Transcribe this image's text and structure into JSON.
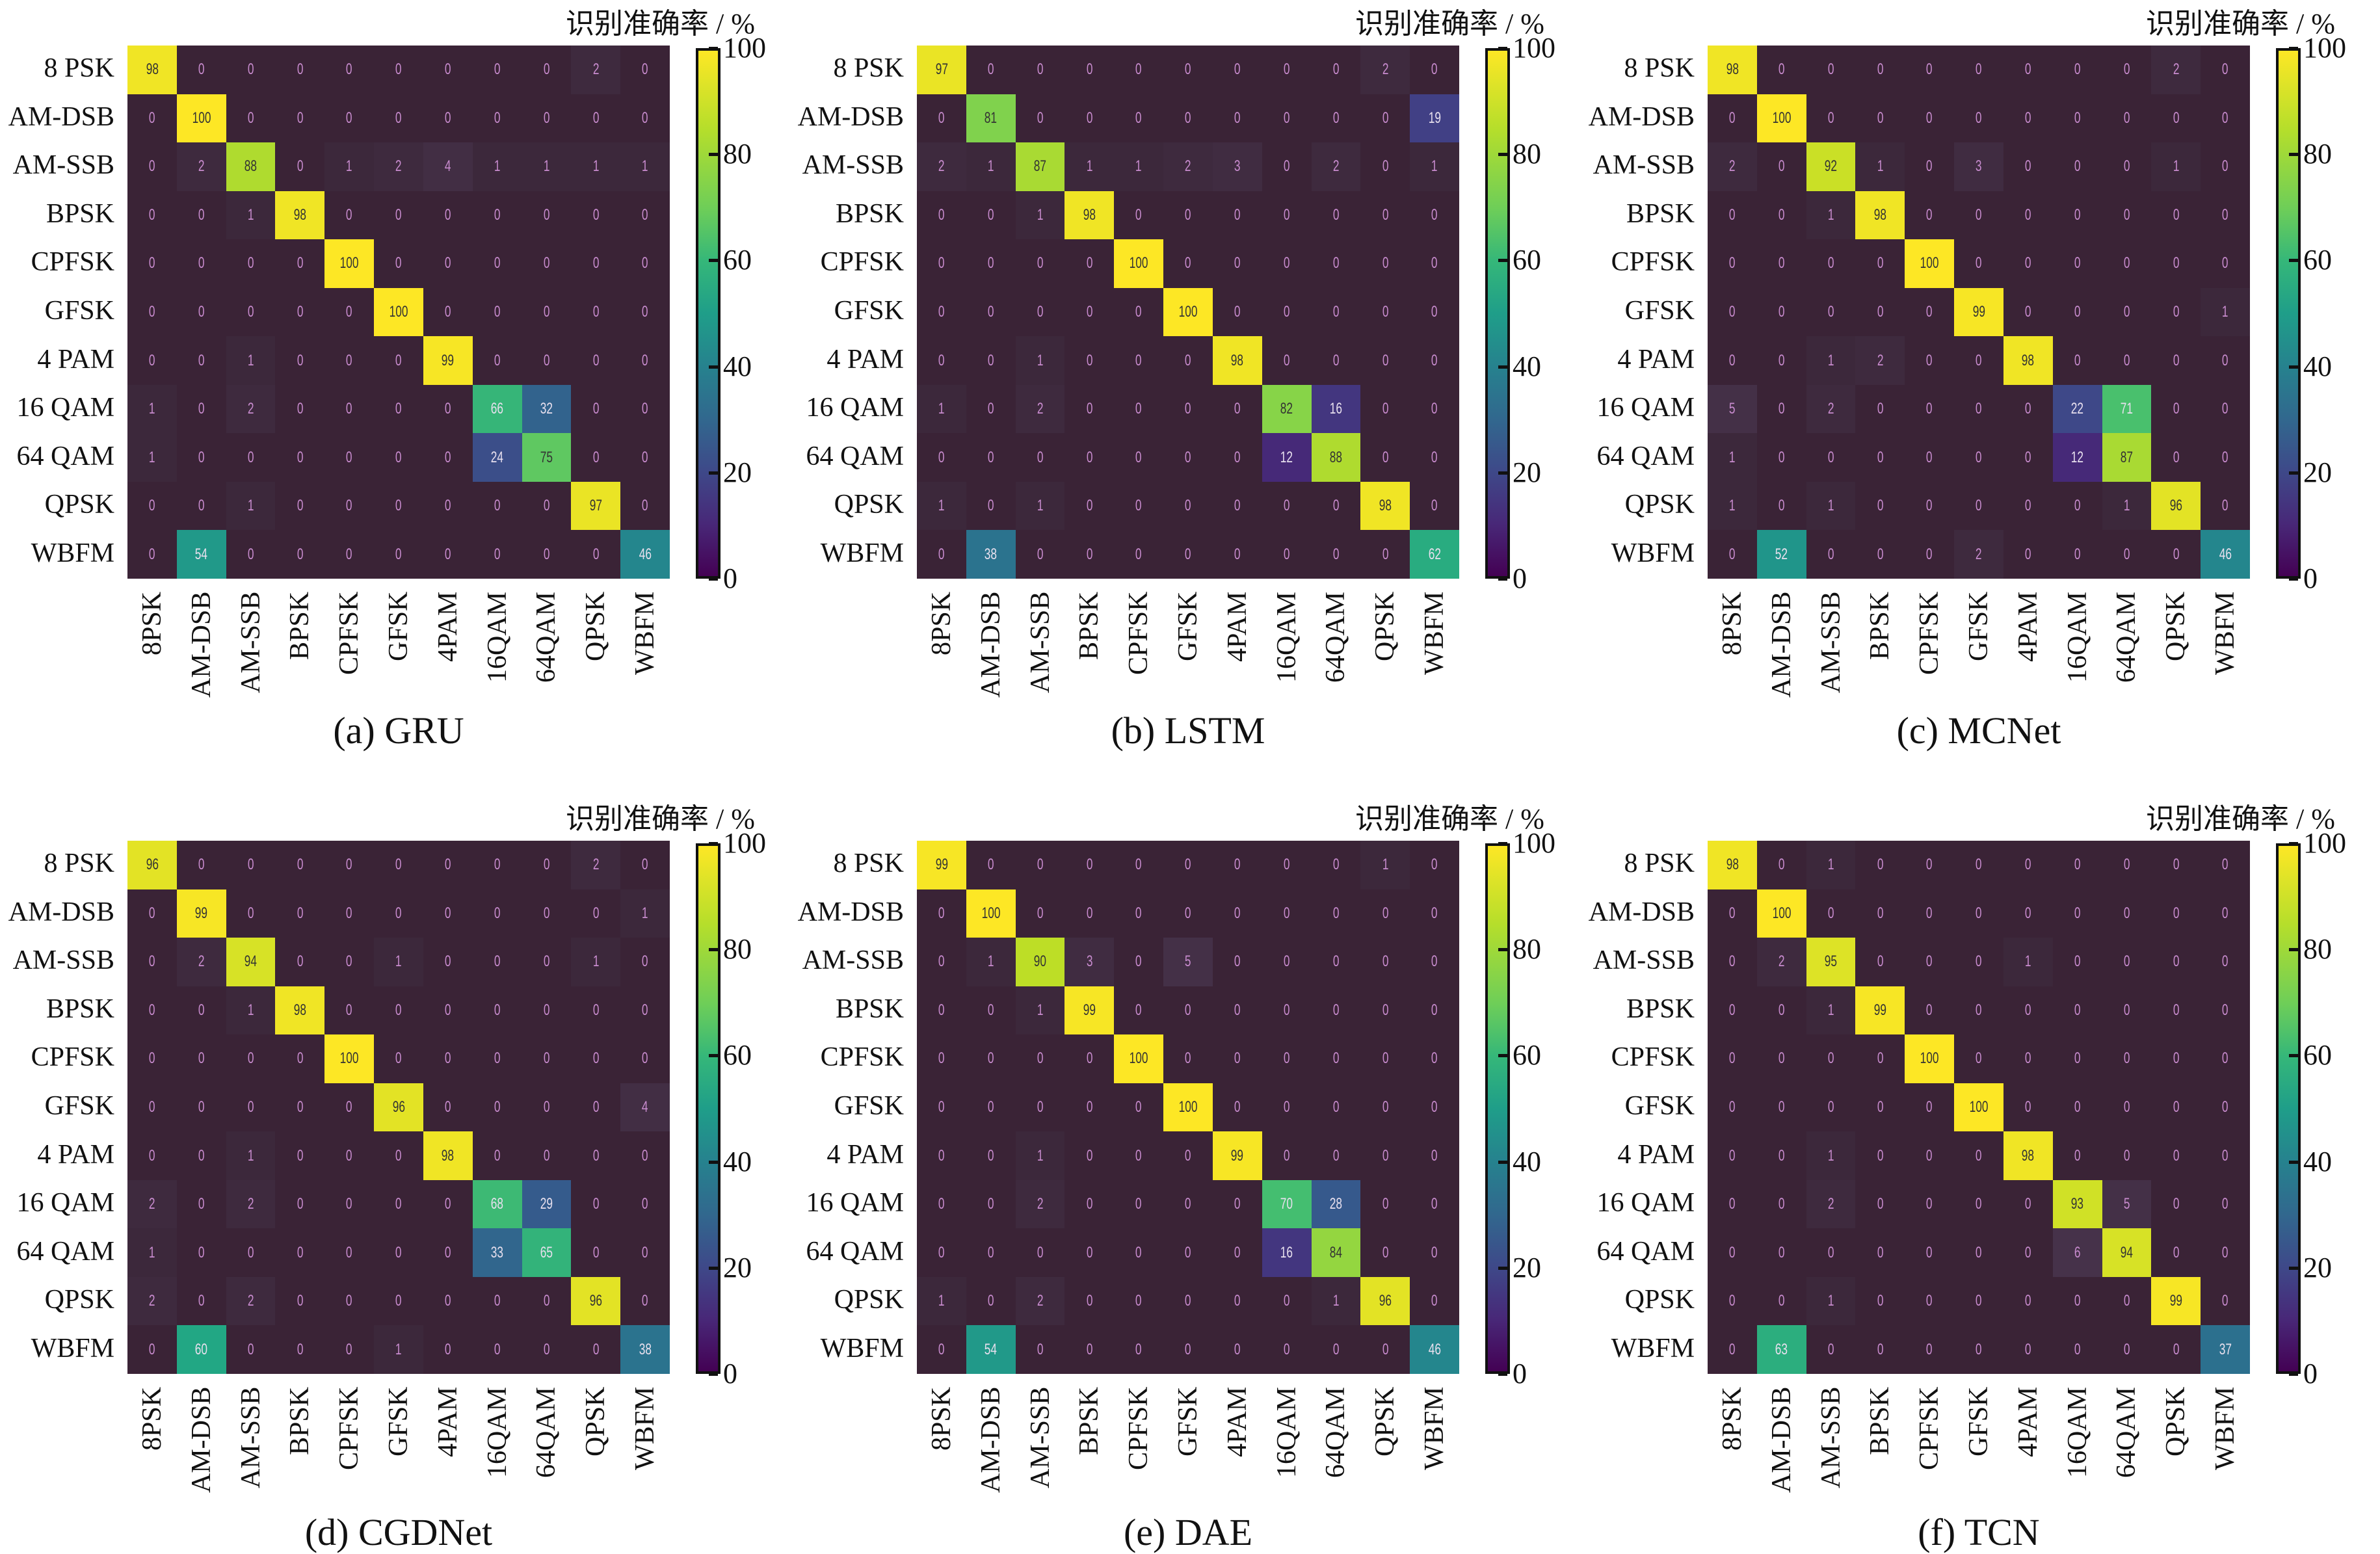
{
  "figure": {
    "colorbar_title": "识别准确率 / %",
    "colorbar_ticks": [
      "0",
      "20",
      "40",
      "60",
      "80",
      "100"
    ]
  },
  "chart_data": [
    {
      "type": "heatmap",
      "title": "(a) GRU",
      "row_labels": [
        "8 PSK",
        "AM-DSB",
        "AM-SSB",
        "BPSK",
        "CPFSK",
        "GFSK",
        "4 PAM",
        "16 QAM",
        "64 QAM",
        "QPSK",
        "WBFM"
      ],
      "col_labels": [
        "8PSK",
        "AM-DSB",
        "AM-SSB",
        "BPSK",
        "CPFSK",
        "GFSK",
        "4PAM",
        "16QAM",
        "64QAM",
        "QPSK",
        "WBFM"
      ],
      "colorbar": {
        "label": "识别准确率 / %",
        "range": [
          0,
          100
        ],
        "ticks": [
          0,
          20,
          40,
          60,
          80,
          100
        ],
        "colormap": "viridis"
      },
      "values": [
        [
          98,
          0,
          0,
          0,
          0,
          0,
          0,
          0,
          0,
          2,
          0
        ],
        [
          0,
          100,
          0,
          0,
          0,
          0,
          0,
          0,
          0,
          0,
          0
        ],
        [
          0,
          2,
          88,
          0,
          1,
          2,
          4,
          1,
          1,
          1,
          1
        ],
        [
          0,
          0,
          1,
          98,
          0,
          0,
          0,
          0,
          0,
          0,
          0
        ],
        [
          0,
          0,
          0,
          0,
          100,
          0,
          0,
          0,
          0,
          0,
          0
        ],
        [
          0,
          0,
          0,
          0,
          0,
          100,
          0,
          0,
          0,
          0,
          0
        ],
        [
          0,
          0,
          1,
          0,
          0,
          0,
          99,
          0,
          0,
          0,
          0
        ],
        [
          1,
          0,
          2,
          0,
          0,
          0,
          0,
          66,
          32,
          0,
          0
        ],
        [
          1,
          0,
          0,
          0,
          0,
          0,
          0,
          24,
          75,
          0,
          0
        ],
        [
          0,
          0,
          1,
          0,
          0,
          0,
          0,
          0,
          0,
          97,
          0
        ],
        [
          0,
          54,
          0,
          0,
          0,
          0,
          0,
          0,
          0,
          0,
          46
        ]
      ]
    },
    {
      "type": "heatmap",
      "title": "(b) LSTM",
      "row_labels": [
        "8 PSK",
        "AM-DSB",
        "AM-SSB",
        "BPSK",
        "CPFSK",
        "GFSK",
        "4 PAM",
        "16 QAM",
        "64 QAM",
        "QPSK",
        "WBFM"
      ],
      "col_labels": [
        "8PSK",
        "AM-DSB",
        "AM-SSB",
        "BPSK",
        "CPFSK",
        "GFSK",
        "4PAM",
        "16QAM",
        "64QAM",
        "QPSK",
        "WBFM"
      ],
      "colorbar": {
        "label": "识别准确率 / %",
        "range": [
          0,
          100
        ],
        "ticks": [
          0,
          20,
          40,
          60,
          80,
          100
        ],
        "colormap": "viridis"
      },
      "values": [
        [
          97,
          0,
          0,
          0,
          0,
          0,
          0,
          0,
          0,
          2,
          0
        ],
        [
          0,
          81,
          0,
          0,
          0,
          0,
          0,
          0,
          0,
          0,
          19
        ],
        [
          2,
          1,
          87,
          1,
          1,
          2,
          3,
          0,
          2,
          0,
          1
        ],
        [
          0,
          0,
          1,
          98,
          0,
          0,
          0,
          0,
          0,
          0,
          0
        ],
        [
          0,
          0,
          0,
          0,
          100,
          0,
          0,
          0,
          0,
          0,
          0
        ],
        [
          0,
          0,
          0,
          0,
          0,
          100,
          0,
          0,
          0,
          0,
          0
        ],
        [
          0,
          0,
          1,
          0,
          0,
          0,
          98,
          0,
          0,
          0,
          0
        ],
        [
          1,
          0,
          2,
          0,
          0,
          0,
          0,
          82,
          16,
          0,
          0
        ],
        [
          0,
          0,
          0,
          0,
          0,
          0,
          0,
          12,
          88,
          0,
          0
        ],
        [
          1,
          0,
          1,
          0,
          0,
          0,
          0,
          0,
          0,
          98,
          0
        ],
        [
          0,
          38,
          0,
          0,
          0,
          0,
          0,
          0,
          0,
          0,
          62
        ]
      ]
    },
    {
      "type": "heatmap",
      "title": "(c) MCNet",
      "row_labels": [
        "8 PSK",
        "AM-DSB",
        "AM-SSB",
        "BPSK",
        "CPFSK",
        "GFSK",
        "4 PAM",
        "16 QAM",
        "64 QAM",
        "QPSK",
        "WBFM"
      ],
      "col_labels": [
        "8PSK",
        "AM-DSB",
        "AM-SSB",
        "BPSK",
        "CPFSK",
        "GFSK",
        "4PAM",
        "16QAM",
        "64QAM",
        "QPSK",
        "WBFM"
      ],
      "colorbar": {
        "label": "识别准确率 / %",
        "range": [
          0,
          100
        ],
        "ticks": [
          0,
          20,
          40,
          60,
          80,
          100
        ],
        "colormap": "viridis"
      },
      "values": [
        [
          98,
          0,
          0,
          0,
          0,
          0,
          0,
          0,
          0,
          2,
          0
        ],
        [
          0,
          100,
          0,
          0,
          0,
          0,
          0,
          0,
          0,
          0,
          0
        ],
        [
          2,
          0,
          92,
          1,
          0,
          3,
          0,
          0,
          0,
          1,
          0
        ],
        [
          0,
          0,
          1,
          98,
          0,
          0,
          0,
          0,
          0,
          0,
          0
        ],
        [
          0,
          0,
          0,
          0,
          100,
          0,
          0,
          0,
          0,
          0,
          0
        ],
        [
          0,
          0,
          0,
          0,
          0,
          99,
          0,
          0,
          0,
          0,
          1
        ],
        [
          0,
          0,
          1,
          2,
          0,
          0,
          98,
          0,
          0,
          0,
          0
        ],
        [
          5,
          0,
          2,
          0,
          0,
          0,
          0,
          22,
          71,
          0,
          0
        ],
        [
          1,
          0,
          0,
          0,
          0,
          0,
          0,
          12,
          87,
          0,
          0
        ],
        [
          1,
          0,
          1,
          0,
          0,
          0,
          0,
          0,
          1,
          96,
          0
        ],
        [
          0,
          52,
          0,
          0,
          0,
          2,
          0,
          0,
          0,
          0,
          46
        ]
      ]
    },
    {
      "type": "heatmap",
      "title": "(d) CGDNet",
      "row_labels": [
        "8 PSK",
        "AM-DSB",
        "AM-SSB",
        "BPSK",
        "CPFSK",
        "GFSK",
        "4 PAM",
        "16 QAM",
        "64 QAM",
        "QPSK",
        "WBFM"
      ],
      "col_labels": [
        "8PSK",
        "AM-DSB",
        "AM-SSB",
        "BPSK",
        "CPFSK",
        "GFSK",
        "4PAM",
        "16QAM",
        "64QAM",
        "QPSK",
        "WBFM"
      ],
      "colorbar": {
        "label": "识别准确率 / %",
        "range": [
          0,
          100
        ],
        "ticks": [
          0,
          20,
          40,
          60,
          80,
          100
        ],
        "colormap": "viridis"
      },
      "values": [
        [
          96,
          0,
          0,
          0,
          0,
          0,
          0,
          0,
          0,
          2,
          0
        ],
        [
          0,
          99,
          0,
          0,
          0,
          0,
          0,
          0,
          0,
          0,
          1
        ],
        [
          0,
          2,
          94,
          0,
          0,
          1,
          0,
          0,
          0,
          1,
          0
        ],
        [
          0,
          0,
          1,
          98,
          0,
          0,
          0,
          0,
          0,
          0,
          0
        ],
        [
          0,
          0,
          0,
          0,
          100,
          0,
          0,
          0,
          0,
          0,
          0
        ],
        [
          0,
          0,
          0,
          0,
          0,
          96,
          0,
          0,
          0,
          0,
          4
        ],
        [
          0,
          0,
          1,
          0,
          0,
          0,
          98,
          0,
          0,
          0,
          0
        ],
        [
          2,
          0,
          2,
          0,
          0,
          0,
          0,
          68,
          29,
          0,
          0
        ],
        [
          1,
          0,
          0,
          0,
          0,
          0,
          0,
          33,
          65,
          0,
          0
        ],
        [
          2,
          0,
          2,
          0,
          0,
          0,
          0,
          0,
          0,
          96,
          0
        ],
        [
          0,
          60,
          0,
          0,
          0,
          1,
          0,
          0,
          0,
          0,
          38
        ]
      ]
    },
    {
      "type": "heatmap",
      "title": "(e) DAE",
      "row_labels": [
        "8 PSK",
        "AM-DSB",
        "AM-SSB",
        "BPSK",
        "CPFSK",
        "GFSK",
        "4 PAM",
        "16 QAM",
        "64 QAM",
        "QPSK",
        "WBFM"
      ],
      "col_labels": [
        "8PSK",
        "AM-DSB",
        "AM-SSB",
        "BPSK",
        "CPFSK",
        "GFSK",
        "4PAM",
        "16QAM",
        "64QAM",
        "QPSK",
        "WBFM"
      ],
      "colorbar": {
        "label": "识别准确率 / %",
        "range": [
          0,
          100
        ],
        "ticks": [
          0,
          20,
          40,
          60,
          80,
          100
        ],
        "colormap": "viridis"
      },
      "values": [
        [
          99,
          0,
          0,
          0,
          0,
          0,
          0,
          0,
          0,
          1,
          0
        ],
        [
          0,
          100,
          0,
          0,
          0,
          0,
          0,
          0,
          0,
          0,
          0
        ],
        [
          0,
          1,
          90,
          3,
          0,
          5,
          0,
          0,
          0,
          0,
          0
        ],
        [
          0,
          0,
          1,
          99,
          0,
          0,
          0,
          0,
          0,
          0,
          0
        ],
        [
          0,
          0,
          0,
          0,
          100,
          0,
          0,
          0,
          0,
          0,
          0
        ],
        [
          0,
          0,
          0,
          0,
          0,
          100,
          0,
          0,
          0,
          0,
          0
        ],
        [
          0,
          0,
          1,
          0,
          0,
          0,
          99,
          0,
          0,
          0,
          0
        ],
        [
          0,
          0,
          2,
          0,
          0,
          0,
          0,
          70,
          28,
          0,
          0
        ],
        [
          0,
          0,
          0,
          0,
          0,
          0,
          0,
          16,
          84,
          0,
          0
        ],
        [
          1,
          0,
          2,
          0,
          0,
          0,
          0,
          0,
          1,
          96,
          0
        ],
        [
          0,
          54,
          0,
          0,
          0,
          0,
          0,
          0,
          0,
          0,
          46
        ]
      ]
    },
    {
      "type": "heatmap",
      "title": "(f) TCN",
      "row_labels": [
        "8 PSK",
        "AM-DSB",
        "AM-SSB",
        "BPSK",
        "CPFSK",
        "GFSK",
        "4 PAM",
        "16 QAM",
        "64 QAM",
        "QPSK",
        "WBFM"
      ],
      "col_labels": [
        "8PSK",
        "AM-DSB",
        "AM-SSB",
        "BPSK",
        "CPFSK",
        "GFSK",
        "4PAM",
        "16QAM",
        "64QAM",
        "QPSK",
        "WBFM"
      ],
      "colorbar": {
        "label": "识别准确率 / %",
        "range": [
          0,
          100
        ],
        "ticks": [
          0,
          20,
          40,
          60,
          80,
          100
        ],
        "colormap": "viridis"
      },
      "values": [
        [
          98,
          0,
          1,
          0,
          0,
          0,
          0,
          0,
          0,
          0,
          0
        ],
        [
          0,
          100,
          0,
          0,
          0,
          0,
          0,
          0,
          0,
          0,
          0
        ],
        [
          0,
          2,
          95,
          0,
          0,
          0,
          1,
          0,
          0,
          0,
          0
        ],
        [
          0,
          0,
          1,
          99,
          0,
          0,
          0,
          0,
          0,
          0,
          0
        ],
        [
          0,
          0,
          0,
          0,
          100,
          0,
          0,
          0,
          0,
          0,
          0
        ],
        [
          0,
          0,
          0,
          0,
          0,
          100,
          0,
          0,
          0,
          0,
          0
        ],
        [
          0,
          0,
          1,
          0,
          0,
          0,
          98,
          0,
          0,
          0,
          0
        ],
        [
          0,
          0,
          2,
          0,
          0,
          0,
          0,
          93,
          5,
          0,
          0
        ],
        [
          0,
          0,
          0,
          0,
          0,
          0,
          0,
          6,
          94,
          0,
          0
        ],
        [
          0,
          0,
          1,
          0,
          0,
          0,
          0,
          0,
          0,
          99,
          0
        ],
        [
          0,
          63,
          0,
          0,
          0,
          0,
          0,
          0,
          0,
          0,
          37
        ]
      ]
    }
  ]
}
